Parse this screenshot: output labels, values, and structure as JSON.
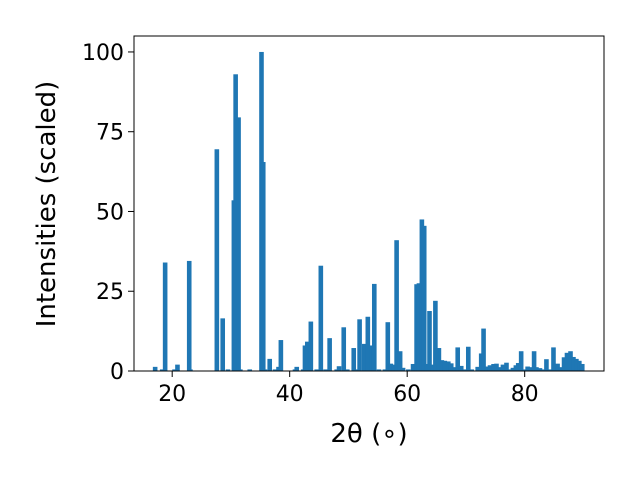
{
  "chart_data": {
    "type": "bar",
    "xlabel": "2θ (∘)",
    "ylabel": "Intensities (scaled)",
    "xlim": [
      13.5,
      93.5
    ],
    "ylim": [
      0,
      105
    ],
    "grid": false,
    "bar_color": "#1f77b4",
    "x_ticks": [
      20,
      40,
      60,
      80
    ],
    "y_ticks": [
      0,
      25,
      50,
      75,
      100
    ],
    "x": [
      17.1,
      18.3,
      18.8,
      20.4,
      20.9,
      22.9,
      23.1,
      27.6,
      28.6,
      29.5,
      30.5,
      30.8,
      31.0,
      31.3,
      31.6,
      33.2,
      35.2,
      35.5,
      35.8,
      36.6,
      37.5,
      38.1,
      38.5,
      40.9,
      41.2,
      42.3,
      42.6,
      43.0,
      43.6,
      44.6,
      45.3,
      46.1,
      46.8,
      48.0,
      48.4,
      49.2,
      49.8,
      50.9,
      51.3,
      51.9,
      52.7,
      53.3,
      53.9,
      54.4,
      55.2,
      56.2,
      56.7,
      57.2,
      57.8,
      58.2,
      58.8,
      59.3,
      60.2,
      61.0,
      61.6,
      62.0,
      62.5,
      62.9,
      63.3,
      63.8,
      64.3,
      64.8,
      65.4,
      65.9,
      66.4,
      67.0,
      67.5,
      68.1,
      68.6,
      69.2,
      69.8,
      70.4,
      71.0,
      72.0,
      72.6,
      73.0,
      73.5,
      74.1,
      74.7,
      75.2,
      75.8,
      76.3,
      76.9,
      77.4,
      78.0,
      78.5,
      78.9,
      79.4,
      80.0,
      80.5,
      81.0,
      81.6,
      82.0,
      82.6,
      83.1,
      83.7,
      84.3,
      84.9,
      85.6,
      86.1,
      86.7,
      87.2,
      87.8,
      88.3,
      88.8,
      89.3,
      89.8
    ],
    "values": [
      1.3,
      0.5,
      34,
      0.5,
      2,
      34.5,
      0.5,
      69.5,
      16.5,
      0.5,
      53.5,
      93,
      0.5,
      79.5,
      0.5,
      0.5,
      100,
      65.5,
      0.5,
      3.8,
      0.5,
      1.3,
      9.7,
      0.5,
      1.3,
      0.5,
      8,
      9.2,
      15.5,
      0.5,
      33,
      0.5,
      10.3,
      0.5,
      1.5,
      13.7,
      0.5,
      7.2,
      0.5,
      16.2,
      8.5,
      17,
      8,
      27.3,
      0.5,
      0.5,
      15.3,
      2.3,
      2,
      41,
      6.2,
      1,
      0.5,
      2.2,
      27.2,
      27.5,
      47.5,
      45.5,
      2.2,
      18.8,
      2,
      22,
      7.2,
      3.4,
      3.2,
      3,
      2.4,
      1.2,
      7.4,
      1.6,
      0.5,
      7.6,
      0.5,
      1.3,
      5.5,
      13.3,
      1.4,
      1.8,
      2.2,
      2.3,
      1.2,
      2,
      2.6,
      0.5,
      1,
      1.8,
      2.5,
      6.2,
      0.5,
      1.4,
      1.2,
      6.2,
      1.2,
      0.9,
      0.5,
      3.7,
      0.5,
      7.4,
      2.3,
      1.2,
      4.3,
      5.7,
      6.2,
      4.4,
      3.8,
      3.2,
      2.2
    ]
  }
}
